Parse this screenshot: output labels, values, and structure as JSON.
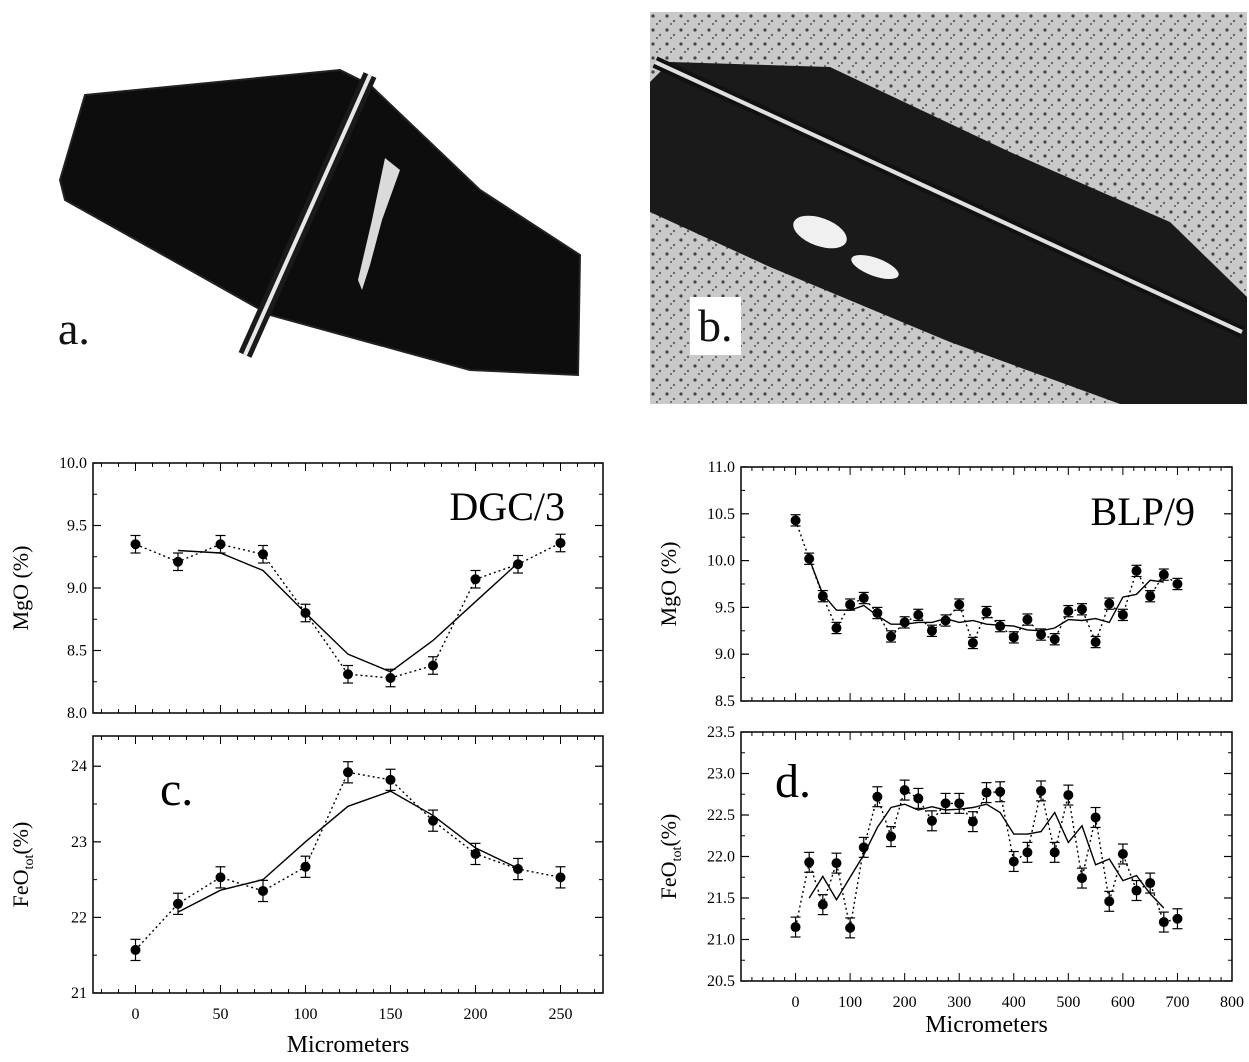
{
  "photos": {
    "a": {
      "label": "a."
    },
    "b": {
      "label": "b."
    }
  },
  "chart_data": [
    {
      "id": "c-mgo",
      "type": "line",
      "title": "DGC/3",
      "xlabel": "",
      "ylabel": "MgO (%)",
      "xlim": [
        -25,
        275
      ],
      "ylim": [
        8.0,
        10.0
      ],
      "xticks": [],
      "yticks": [
        "8.0",
        "8.5",
        "9.0",
        "9.5",
        "10.0"
      ],
      "series": [
        {
          "style": "points-dotted",
          "x": [
            0,
            25,
            50,
            75,
            100,
            125,
            150,
            175,
            200,
            225,
            250
          ],
          "y": [
            9.35,
            9.21,
            9.35,
            9.27,
            8.8,
            8.31,
            8.28,
            8.38,
            9.07,
            9.19,
            9.36
          ],
          "err": 0.07
        },
        {
          "style": "solid",
          "x": [
            25,
            50,
            75,
            100,
            125,
            150,
            175,
            200,
            225
          ],
          "y": [
            9.3,
            9.28,
            9.14,
            8.8,
            8.47,
            8.33,
            8.58,
            8.89,
            9.2
          ]
        }
      ]
    },
    {
      "id": "c-feo",
      "type": "line",
      "title": "c.",
      "xlabel": "Micrometers",
      "ylabel": "FeO_tot (%)",
      "xlim": [
        -25,
        275
      ],
      "ylim": [
        21,
        24.4
      ],
      "xticks": [
        "0",
        "50",
        "100",
        "150",
        "200",
        "250"
      ],
      "yticks": [
        "21",
        "22",
        "23",
        "24"
      ],
      "series": [
        {
          "style": "points-dotted",
          "x": [
            0,
            25,
            50,
            75,
            100,
            125,
            150,
            175,
            200,
            225,
            250
          ],
          "y": [
            21.57,
            22.18,
            22.53,
            22.35,
            22.67,
            23.92,
            23.82,
            23.28,
            22.84,
            22.64,
            22.53
          ],
          "err": 0.14
        },
        {
          "style": "solid",
          "x": [
            25,
            50,
            75,
            100,
            125,
            150,
            175,
            200,
            225
          ],
          "y": [
            22.07,
            22.36,
            22.5,
            23.0,
            23.47,
            23.67,
            23.35,
            22.92,
            22.65
          ]
        }
      ]
    },
    {
      "id": "d-mgo",
      "type": "line",
      "title": "BLP/9",
      "xlabel": "",
      "ylabel": "MgO (%)",
      "xlim": [
        -100,
        800
      ],
      "ylim": [
        8.5,
        11.0
      ],
      "xticks": [],
      "yticks": [
        "8.5",
        "9.0",
        "9.5",
        "10.0",
        "10.5",
        "11.0"
      ],
      "series": [
        {
          "style": "points-dotted",
          "x": [
            0,
            25,
            50,
            75,
            100,
            125,
            150,
            175,
            200,
            225,
            250,
            275,
            300,
            325,
            350,
            375,
            400,
            425,
            450,
            475,
            500,
            525,
            550,
            575,
            600,
            625,
            650,
            675,
            700
          ],
          "y": [
            10.43,
            10.02,
            9.62,
            9.28,
            9.53,
            9.6,
            9.44,
            9.19,
            9.34,
            9.42,
            9.25,
            9.36,
            9.53,
            9.12,
            9.45,
            9.3,
            9.18,
            9.37,
            9.21,
            9.16,
            9.46,
            9.48,
            9.13,
            9.54,
            9.42,
            9.89,
            9.62,
            9.85,
            9.75
          ],
          "err": 0.06
        },
        {
          "style": "solid",
          "x": [
            25,
            50,
            75,
            100,
            125,
            150,
            175,
            200,
            225,
            250,
            275,
            300,
            325,
            350,
            375,
            400,
            425,
            450,
            475,
            500,
            525,
            550,
            575,
            600,
            625,
            650,
            675
          ],
          "y": [
            10.02,
            9.64,
            9.47,
            9.47,
            9.52,
            9.41,
            9.32,
            9.32,
            9.34,
            9.34,
            9.38,
            9.34,
            9.36,
            9.32,
            9.31,
            9.3,
            9.26,
            9.25,
            9.28,
            9.37,
            9.36,
            9.38,
            9.34,
            9.61,
            9.64,
            9.79,
            9.77
          ]
        }
      ]
    },
    {
      "id": "d-feo",
      "type": "line",
      "title": "d.",
      "xlabel": "Micrometers",
      "ylabel": "FeO_tot (%)",
      "xlim": [
        -100,
        800
      ],
      "ylim": [
        20.5,
        23.5
      ],
      "xticks": [
        "0",
        "100",
        "200",
        "300",
        "400",
        "500",
        "600",
        "700",
        "800"
      ],
      "yticks": [
        "20.5",
        "21.0",
        "21.5",
        "22.0",
        "22.5",
        "23.0",
        "23.5"
      ],
      "series": [
        {
          "style": "points-dotted",
          "x": [
            0,
            25,
            50,
            75,
            100,
            125,
            150,
            175,
            200,
            225,
            250,
            275,
            300,
            325,
            350,
            375,
            400,
            425,
            450,
            475,
            500,
            525,
            550,
            575,
            600,
            625,
            650,
            675,
            700
          ],
          "y": [
            21.15,
            21.93,
            21.42,
            21.92,
            21.14,
            22.11,
            22.72,
            22.24,
            22.8,
            22.7,
            22.43,
            22.64,
            22.64,
            22.42,
            22.77,
            22.78,
            21.94,
            22.05,
            22.79,
            22.05,
            22.74,
            21.74,
            22.47,
            21.46,
            22.03,
            21.59,
            21.68,
            21.21,
            21.25
          ],
          "err": 0.12
        },
        {
          "style": "solid",
          "x": [
            25,
            50,
            75,
            100,
            125,
            150,
            175,
            200,
            225,
            250,
            275,
            300,
            325,
            350,
            375,
            400,
            425,
            450,
            475,
            500,
            525,
            550,
            575,
            600,
            625,
            650,
            675
          ],
          "y": [
            21.5,
            21.76,
            21.48,
            21.75,
            22.02,
            22.35,
            22.59,
            22.63,
            22.56,
            22.6,
            22.56,
            22.57,
            22.59,
            22.63,
            22.53,
            22.27,
            22.27,
            22.3,
            22.53,
            22.17,
            22.37,
            21.9,
            21.97,
            21.71,
            21.77,
            21.55,
            21.38
          ]
        }
      ]
    }
  ]
}
